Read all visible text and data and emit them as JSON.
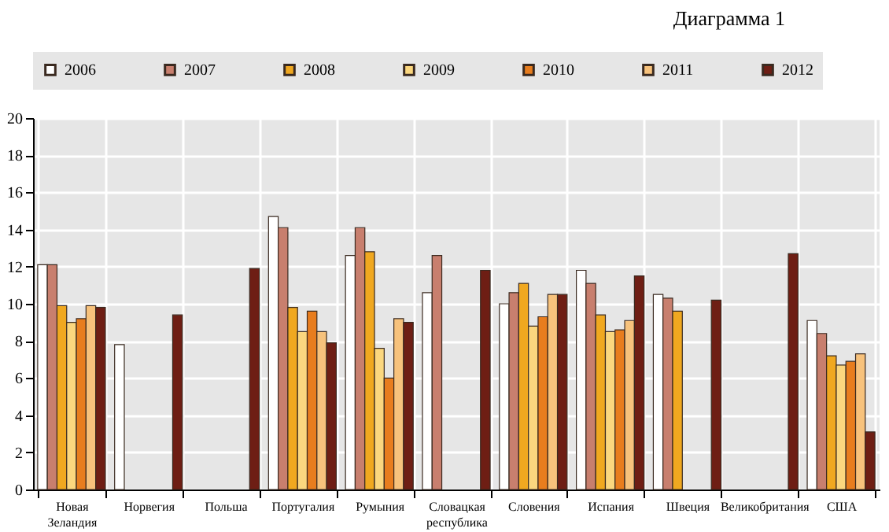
{
  "chart_data": {
    "type": "bar",
    "title": "Диаграмма 1",
    "categories": [
      "Новая Зеландия",
      "Норвегия",
      "Польша",
      "Португалия",
      "Румыния",
      "Словацкая республика",
      "Словения",
      "Испания",
      "Швеция",
      "Великобритания",
      "США"
    ],
    "series": [
      {
        "name": "2006",
        "color": "#ffffff",
        "values": [
          12.1,
          7.8,
          null,
          14.7,
          12.6,
          10.6,
          10.0,
          11.8,
          10.5,
          null,
          9.1
        ]
      },
      {
        "name": "2007",
        "color": "#c87f6e",
        "values": [
          12.1,
          null,
          null,
          14.1,
          14.1,
          12.6,
          10.6,
          11.1,
          10.3,
          null,
          8.4
        ]
      },
      {
        "name": "2008",
        "color": "#f0a820",
        "values": [
          9.9,
          null,
          null,
          9.8,
          12.8,
          null,
          11.1,
          9.4,
          9.6,
          null,
          7.2
        ]
      },
      {
        "name": "2009",
        "color": "#fbd77f",
        "values": [
          9.0,
          null,
          null,
          8.5,
          7.6,
          null,
          8.8,
          8.5,
          null,
          null,
          6.7
        ]
      },
      {
        "name": "2010",
        "color": "#e87d1e",
        "values": [
          9.2,
          null,
          null,
          9.6,
          6.0,
          null,
          9.3,
          8.6,
          null,
          null,
          6.9
        ]
      },
      {
        "name": "2011",
        "color": "#f7c27c",
        "values": [
          9.9,
          null,
          null,
          8.5,
          9.2,
          null,
          10.5,
          9.1,
          null,
          null,
          7.3
        ]
      },
      {
        "name": "2012",
        "color": "#6e1e14",
        "values": [
          9.8,
          9.4,
          11.9,
          7.9,
          9.0,
          11.8,
          10.5,
          11.5,
          10.2,
          12.7,
          3.1
        ]
      }
    ],
    "ylim": [
      0,
      20
    ],
    "yticks": [
      0,
      2,
      4,
      6,
      8,
      10,
      12,
      14,
      16,
      18,
      20
    ],
    "grid": true,
    "legend": "top"
  }
}
